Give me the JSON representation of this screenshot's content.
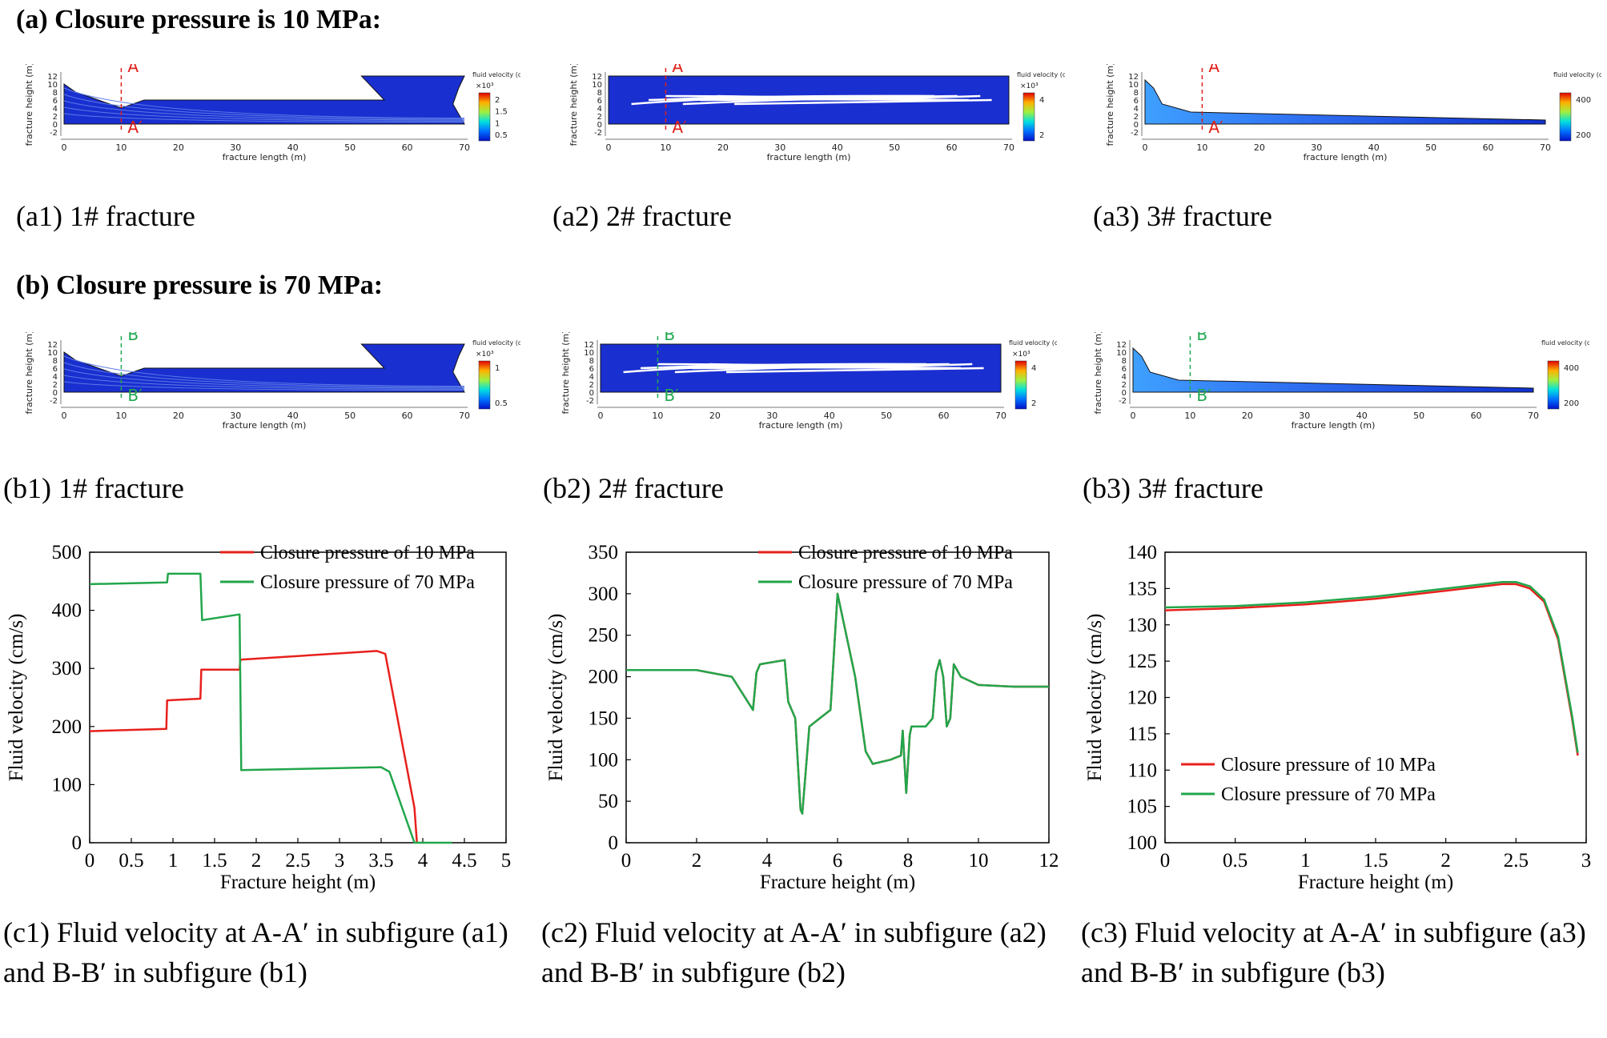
{
  "rows": {
    "a_title": "(a) Closure pressure is 10 MPa:",
    "b_title": "(b) Closure pressure is 70 MPa:"
  },
  "contour": {
    "x_label": "fracture length (m)",
    "y_label": "fracture height (m)",
    "x_ticks": [
      "0",
      "10",
      "20",
      "30",
      "40",
      "50",
      "60",
      "70"
    ],
    "y_ticks": [
      "12",
      "10",
      "8",
      "6",
      "4",
      "2",
      "0",
      "-2"
    ],
    "legend_title": "fluid velocity (cm/s)",
    "multiplier": "×10³",
    "colors": {
      "line_a": "#e0201a",
      "line_b": "#1fa84f"
    },
    "panels": [
      {
        "id": "a1",
        "line": "A",
        "line_end": "A′",
        "line_color": "#e0201a",
        "scale_ticks": [
          "2",
          "1.5",
          "1",
          "0.5"
        ],
        "has_mult": true,
        "caption": "(a1) 1# fracture"
      },
      {
        "id": "a2",
        "line": "A",
        "line_end": "A′",
        "line_color": "#e0201a",
        "scale_ticks": [
          "4",
          "2"
        ],
        "has_mult": true,
        "caption": "(a2) 2# fracture"
      },
      {
        "id": "a3",
        "line": "A",
        "line_end": "A′",
        "line_color": "#e0201a",
        "scale_ticks": [
          "400",
          "200"
        ],
        "has_mult": false,
        "caption": "(a3) 3# fracture"
      },
      {
        "id": "b1",
        "line": "B",
        "line_end": "B′",
        "line_color": "#1fa84f",
        "scale_ticks": [
          "1",
          "0.5"
        ],
        "has_mult": true,
        "caption": "(b1) 1# fracture"
      },
      {
        "id": "b2",
        "line": "B",
        "line_end": "B′",
        "line_color": "#1fa84f",
        "scale_ticks": [
          "4",
          "2"
        ],
        "has_mult": true,
        "caption": "(b2) 2# fracture"
      },
      {
        "id": "b3",
        "line": "B",
        "line_end": "B′",
        "line_color": "#1fa84f",
        "scale_ticks": [
          "400",
          "200"
        ],
        "has_mult": false,
        "caption": "(b3) 3# fracture"
      }
    ]
  },
  "chart_data": [
    {
      "id": "c1",
      "type": "line",
      "xlabel": "Fracture height (m)",
      "ylabel": "Fluid velocity (cm/s)",
      "xlim": [
        0,
        5
      ],
      "ylim": [
        0,
        500
      ],
      "xticks": [
        0,
        0.5,
        1,
        1.5,
        2,
        2.5,
        3,
        3.5,
        4,
        4.5,
        5
      ],
      "yticks": [
        0,
        100,
        200,
        300,
        400,
        500
      ],
      "legend_position": "top-right",
      "series": [
        {
          "name": "Closure pressure of 10 MPa",
          "color": "#e8201c",
          "x": [
            0,
            0.92,
            0.93,
            1.33,
            1.34,
            1.8,
            1.81,
            3.45,
            3.55,
            3.9,
            3.93
          ],
          "y": [
            192,
            196,
            245,
            248,
            298,
            298,
            315,
            330,
            325,
            60,
            0
          ]
        },
        {
          "name": "Closure pressure of 70 MPa",
          "color": "#22a64b",
          "x": [
            0,
            0.93,
            0.94,
            1.33,
            1.35,
            1.8,
            1.82,
            3.5,
            3.6,
            3.9,
            4.35
          ],
          "y": [
            445,
            448,
            463,
            463,
            383,
            393,
            125,
            130,
            122,
            0,
            0
          ]
        }
      ],
      "caption": "(c1) Fluid velocity at A-A′ in subfigure (a1) and B-B′ in subfigure (b1)"
    },
    {
      "id": "c2",
      "type": "line",
      "xlabel": "Fracture height (m)",
      "ylabel": "Fluid velocity (cm/s)",
      "xlim": [
        0,
        12
      ],
      "ylim": [
        0,
        350
      ],
      "xticks": [
        0,
        2,
        4,
        6,
        8,
        10,
        12
      ],
      "yticks": [
        0,
        50,
        100,
        150,
        200,
        250,
        300,
        350
      ],
      "legend_position": "top-right",
      "series": [
        {
          "name": "Closure pressure of 10 MPa",
          "color": "#e8201c",
          "x": [
            0,
            2,
            3,
            3.6,
            3.7,
            3.8,
            4.5,
            4.6,
            4.8,
            4.95,
            5.0,
            5.2,
            5.5,
            5.8,
            6.0,
            6.5,
            6.8,
            7.0,
            7.5,
            7.8,
            7.85,
            7.95,
            8.05,
            8.1,
            8.5,
            8.7,
            8.8,
            8.9,
            9.0,
            9.1,
            9.2,
            9.3,
            9.5,
            10,
            11,
            12
          ],
          "y": [
            208,
            208,
            200,
            160,
            205,
            215,
            220,
            170,
            150,
            40,
            35,
            140,
            150,
            160,
            300,
            200,
            110,
            95,
            100,
            105,
            135,
            60,
            130,
            140,
            140,
            150,
            205,
            220,
            200,
            140,
            150,
            215,
            200,
            190,
            188,
            188
          ]
        },
        {
          "name": "Closure pressure of 70 MPa",
          "color": "#22a64b",
          "x": [
            0,
            2,
            3,
            3.6,
            3.7,
            3.8,
            4.5,
            4.6,
            4.8,
            4.95,
            5.0,
            5.2,
            5.5,
            5.8,
            6.0,
            6.5,
            6.8,
            7.0,
            7.5,
            7.8,
            7.85,
            7.95,
            8.05,
            8.1,
            8.5,
            8.7,
            8.8,
            8.9,
            9.0,
            9.1,
            9.2,
            9.3,
            9.5,
            10,
            11,
            12
          ],
          "y": [
            208,
            208,
            200,
            160,
            205,
            215,
            220,
            170,
            150,
            40,
            35,
            140,
            150,
            160,
            300,
            200,
            110,
            95,
            100,
            105,
            135,
            60,
            130,
            140,
            140,
            150,
            205,
            220,
            200,
            140,
            150,
            215,
            200,
            190,
            188,
            188
          ]
        }
      ],
      "caption": "(c2) Fluid velocity at A-A′ in subfigure (a2) and B-B′ in subfigure (b2)"
    },
    {
      "id": "c3",
      "type": "line",
      "xlabel": "Fracture height (m)",
      "ylabel": "Fluid velocity (cm/s)",
      "xlim": [
        0,
        3
      ],
      "ylim": [
        100,
        140
      ],
      "xticks": [
        0,
        0.5,
        1,
        1.5,
        2,
        2.5,
        3
      ],
      "yticks": [
        100,
        105,
        110,
        115,
        120,
        125,
        130,
        135,
        140
      ],
      "legend_position": "bottom-left",
      "series": [
        {
          "name": "Closure pressure of 10 MPa",
          "color": "#e8201c",
          "x": [
            0,
            0.5,
            1,
            1.5,
            2,
            2.4,
            2.5,
            2.6,
            2.7,
            2.8,
            2.9,
            2.94
          ],
          "y": [
            132,
            132.3,
            132.8,
            133.6,
            134.7,
            135.6,
            135.6,
            135.0,
            133.2,
            128,
            117,
            112
          ]
        },
        {
          "name": "Closure pressure of 70 MPa",
          "color": "#22a64b",
          "x": [
            0,
            0.5,
            1,
            1.5,
            2,
            2.4,
            2.5,
            2.6,
            2.7,
            2.8,
            2.9,
            2.94
          ],
          "y": [
            132.4,
            132.6,
            133.1,
            133.9,
            135,
            135.9,
            135.9,
            135.3,
            133.5,
            128.4,
            117.4,
            112.4
          ]
        }
      ],
      "caption": "(c3) Fluid velocity at A-A′ in subfigure (a3) and B-B′ in subfigure (b3)"
    }
  ]
}
